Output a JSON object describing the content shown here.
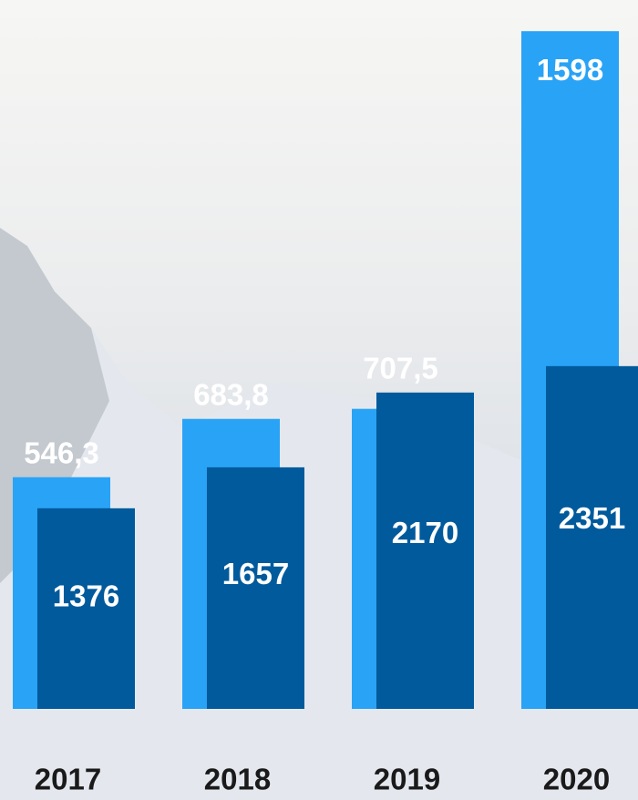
{
  "chart_data": {
    "type": "bar",
    "categories": [
      "2017",
      "2018",
      "2019",
      "2020"
    ],
    "series": [
      {
        "color": "#29a3f5",
        "axis": "y2",
        "values": [
          546.3,
          683.8,
          707.5,
          1598
        ],
        "value_labels": [
          "546,3",
          "683,8",
          "707,5",
          "1598"
        ]
      },
      {
        "color": "#005a9c",
        "values": [
          1376,
          1657,
          2170,
          2351
        ]
      }
    ],
    "ylim": [
      0,
      4800
    ],
    "y2lim": [
      0,
      1650
    ],
    "grid": false
  }
}
